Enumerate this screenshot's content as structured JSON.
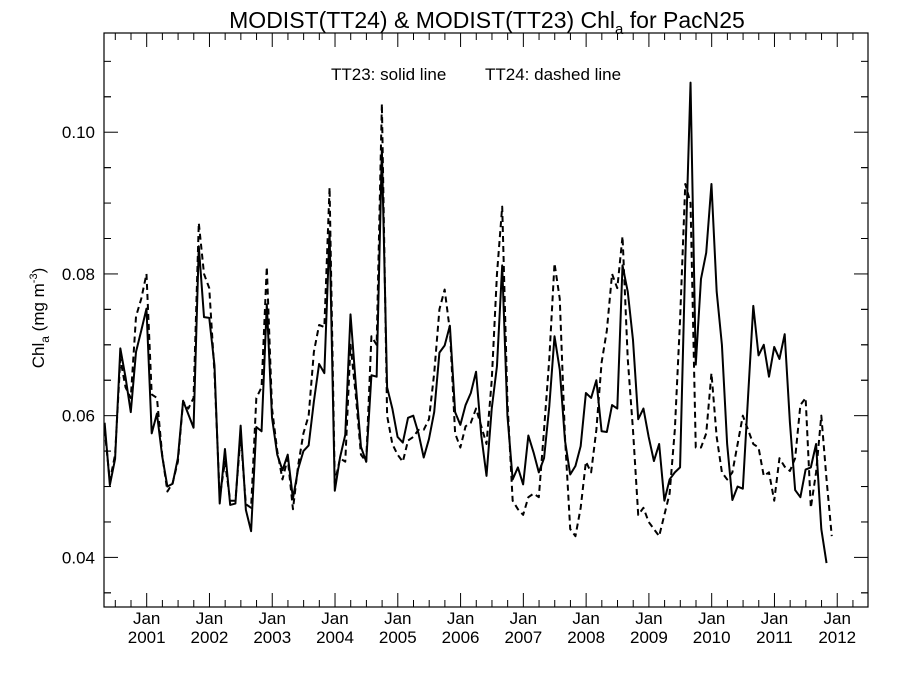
{
  "chart_data": {
    "type": "line",
    "title_parts": {
      "prefix": "MODIST(TT24) & MODIST(TT23)  Chl",
      "sub": "a",
      "suffix": " for PacN25"
    },
    "ylabel_parts": {
      "prefix": "Chl",
      "sub": "a",
      "mid": " (mg m",
      "sup": "-3",
      "suffix": ")"
    },
    "annotation_left": "TT23: solid line",
    "annotation_right": "TT24: dashed line",
    "xlim": [
      2000.32,
      2012.49
    ],
    "ylim": [
      0.033,
      0.114
    ],
    "yticks": [
      0.04,
      0.06,
      0.08,
      0.1
    ],
    "ytick_labels": [
      "0.04",
      "0.06",
      "0.08",
      "0.10"
    ],
    "xticks": [
      2001,
      2002,
      2003,
      2004,
      2005,
      2006,
      2007,
      2008,
      2009,
      2010,
      2011,
      2012
    ],
    "xtick_month": "Jan",
    "xtick_years": [
      "2001",
      "2002",
      "2003",
      "2004",
      "2005",
      "2006",
      "2007",
      "2008",
      "2009",
      "2010",
      "2011",
      "2012"
    ],
    "x_start": 2000.33,
    "x_step": 0.08333,
    "series": [
      {
        "name": "TT23",
        "style": "solid",
        "values": [
          0.059,
          0.0502,
          0.0539,
          0.0695,
          0.0654,
          0.0605,
          0.069,
          0.072,
          0.0751,
          0.0575,
          0.0603,
          0.0543,
          0.05,
          0.0504,
          0.054,
          0.0621,
          0.0602,
          0.0583,
          0.0839,
          0.0739,
          0.0738,
          0.0671,
          0.0476,
          0.0553,
          0.0474,
          0.0476,
          0.0586,
          0.0467,
          0.0437,
          0.0584,
          0.0578,
          0.0757,
          0.0597,
          0.0545,
          0.0523,
          0.0545,
          0.0483,
          0.0525,
          0.055,
          0.0558,
          0.062,
          0.0673,
          0.066,
          0.086,
          0.0494,
          0.0541,
          0.0573,
          0.0743,
          0.0645,
          0.0556,
          0.0535,
          0.0657,
          0.0655,
          0.0976,
          0.064,
          0.061,
          0.057,
          0.0562,
          0.0597,
          0.06,
          0.0575,
          0.0541,
          0.0567,
          0.0605,
          0.0689,
          0.0699,
          0.0727,
          0.0605,
          0.0587,
          0.0615,
          0.0632,
          0.0662,
          0.0572,
          0.0515,
          0.061,
          0.067,
          0.0812,
          0.06,
          0.051,
          0.0527,
          0.0503,
          0.0572,
          0.0548,
          0.052,
          0.054,
          0.0613,
          0.0712,
          0.0665,
          0.0565,
          0.0517,
          0.0529,
          0.0557,
          0.0632,
          0.0625,
          0.065,
          0.0578,
          0.0577,
          0.0615,
          0.061,
          0.0812,
          0.0775,
          0.0707,
          0.0595,
          0.061,
          0.057,
          0.0536,
          0.056,
          0.048,
          0.051,
          0.052,
          0.0527,
          0.082,
          0.107,
          0.0672,
          0.0793,
          0.083,
          0.0927,
          0.0775,
          0.07,
          0.056,
          0.0481,
          0.05,
          0.0497,
          0.0627,
          0.0755,
          0.0685,
          0.07,
          0.0655,
          0.0697,
          0.068,
          0.0715,
          0.059,
          0.0495,
          0.0485,
          0.0524,
          0.0527,
          0.056,
          0.044,
          0.0392
        ]
      },
      {
        "name": "TT24",
        "style": "dashed",
        "values": [
          0.058,
          0.0508,
          0.0545,
          0.068,
          0.064,
          0.0625,
          0.074,
          0.0765,
          0.08,
          0.063,
          0.0625,
          0.0545,
          0.0493,
          0.0505,
          0.0535,
          0.062,
          0.061,
          0.0625,
          0.0872,
          0.08,
          0.078,
          0.066,
          0.0485,
          0.0535,
          0.048,
          0.048,
          0.0572,
          0.0475,
          0.047,
          0.0625,
          0.064,
          0.081,
          0.061,
          0.055,
          0.051,
          0.054,
          0.0468,
          0.053,
          0.0575,
          0.06,
          0.069,
          0.0728,
          0.0725,
          0.0922,
          0.0505,
          0.054,
          0.0535,
          0.07,
          0.063,
          0.0545,
          0.0535,
          0.0712,
          0.07,
          0.104,
          0.06,
          0.056,
          0.0545,
          0.0535,
          0.0565,
          0.057,
          0.058,
          0.058,
          0.0595,
          0.066,
          0.075,
          0.0778,
          0.072,
          0.0575,
          0.0555,
          0.0585,
          0.059,
          0.061,
          0.0585,
          0.056,
          0.065,
          0.08,
          0.0895,
          0.062,
          0.048,
          0.0468,
          0.046,
          0.0485,
          0.049,
          0.0485,
          0.058,
          0.068,
          0.0815,
          0.0765,
          0.057,
          0.044,
          0.043,
          0.047,
          0.0535,
          0.052,
          0.058,
          0.0675,
          0.072,
          0.08,
          0.078,
          0.0853,
          0.068,
          0.058,
          0.046,
          0.047,
          0.045,
          0.044,
          0.043,
          0.046,
          0.049,
          0.058,
          0.0735,
          0.0927,
          0.09,
          0.0555,
          0.0555,
          0.0575,
          0.066,
          0.057,
          0.052,
          0.051,
          0.052,
          0.056,
          0.06,
          0.058,
          0.056,
          0.0555,
          0.0515,
          0.052,
          0.048,
          0.054,
          0.0528,
          0.0522,
          0.054,
          0.0615,
          0.0625,
          0.047,
          0.052,
          0.06,
          0.051,
          0.043
        ]
      }
    ],
    "grid": false,
    "legend_placement": "top-center (text annotation)"
  }
}
